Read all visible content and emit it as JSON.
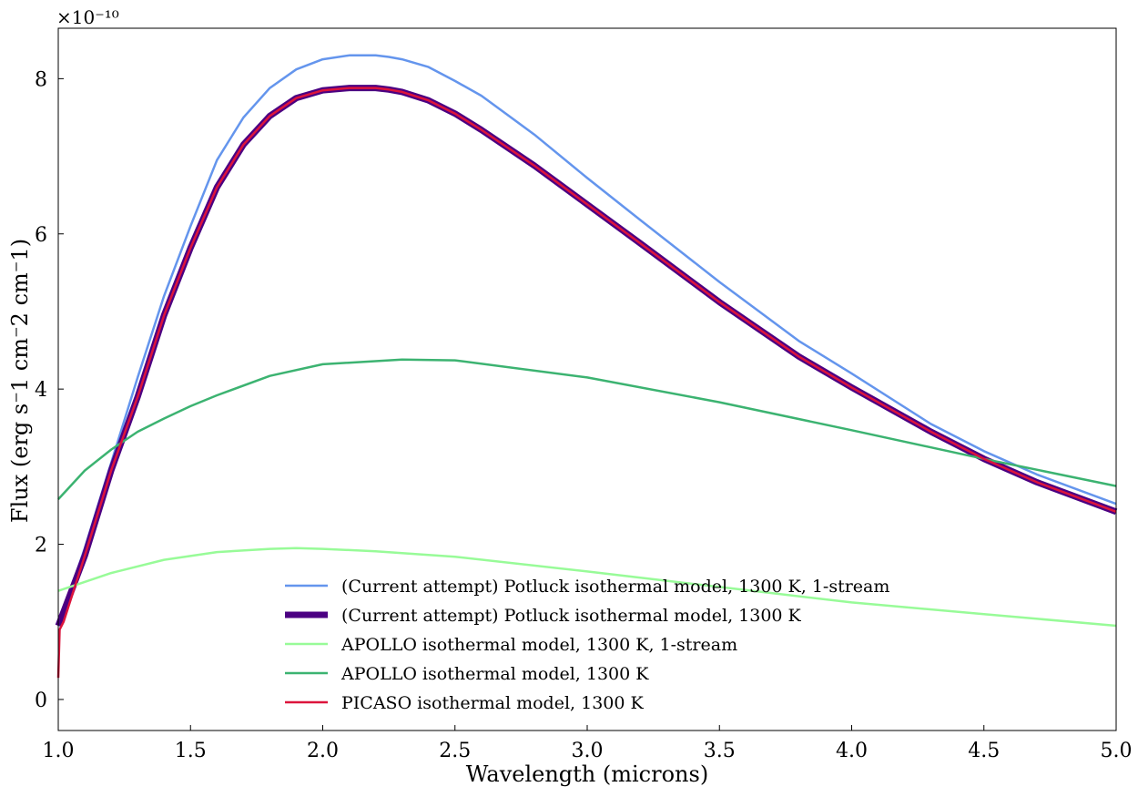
{
  "chart_data": {
    "type": "line",
    "xlabel": "Wavelength (microns)",
    "ylabel": "Flux (erg s⁻1 cm⁻2 cm⁻1)",
    "xlim": [
      1.0,
      5.0
    ],
    "ylim": [
      -0.4,
      8.65
    ],
    "y_multiplier": "×10⁻¹⁰",
    "x_ticks": [
      "1.0",
      "1.5",
      "2.0",
      "2.5",
      "3.0",
      "3.5",
      "4.0",
      "4.5",
      "5.0"
    ],
    "y_ticks": [
      "0",
      "2",
      "4",
      "6",
      "8"
    ],
    "grid": false,
    "legend_position": "lower-center",
    "series": [
      {
        "name": "(Current attempt) Potluck isothermal model, 1300 K, 1-stream",
        "color": "#6495ED",
        "width": 2.5,
        "x": [
          1.0,
          1.1,
          1.2,
          1.3,
          1.4,
          1.5,
          1.6,
          1.7,
          1.8,
          1.9,
          2.0,
          2.1,
          2.2,
          2.25,
          2.3,
          2.4,
          2.5,
          2.6,
          2.8,
          3.0,
          3.2,
          3.5,
          3.8,
          4.0,
          4.3,
          4.5,
          4.7,
          5.0
        ],
        "values": [
          0.95,
          1.95,
          3.05,
          4.15,
          5.2,
          6.1,
          6.95,
          7.5,
          7.88,
          8.12,
          8.25,
          8.3,
          8.3,
          8.28,
          8.25,
          8.15,
          7.97,
          7.78,
          7.28,
          6.72,
          6.18,
          5.38,
          4.62,
          4.2,
          3.55,
          3.2,
          2.9,
          2.52
        ]
      },
      {
        "name": "(Current attempt) Potluck isothermal model, 1300 K",
        "color": "#4B0082",
        "width": 7,
        "x": [
          1.0,
          1.1,
          1.2,
          1.3,
          1.4,
          1.5,
          1.6,
          1.7,
          1.8,
          1.9,
          2.0,
          2.1,
          2.2,
          2.25,
          2.3,
          2.4,
          2.5,
          2.6,
          2.8,
          3.0,
          3.2,
          3.5,
          3.8,
          4.0,
          4.3,
          4.5,
          4.7,
          5.0
        ],
        "values": [
          0.95,
          1.85,
          2.95,
          3.9,
          4.95,
          5.82,
          6.6,
          7.15,
          7.52,
          7.75,
          7.85,
          7.88,
          7.88,
          7.86,
          7.83,
          7.72,
          7.55,
          7.34,
          6.88,
          6.38,
          5.88,
          5.12,
          4.42,
          4.02,
          3.45,
          3.1,
          2.8,
          2.42
        ]
      },
      {
        "name": "APOLLO isothermal model, 1300 K, 1-stream",
        "color": "#98FB98",
        "width": 2.5,
        "x": [
          1.0,
          1.2,
          1.4,
          1.6,
          1.8,
          1.9,
          2.0,
          2.2,
          2.5,
          3.0,
          3.5,
          4.0,
          4.5,
          5.0
        ],
        "values": [
          1.4,
          1.63,
          1.8,
          1.9,
          1.94,
          1.95,
          1.94,
          1.91,
          1.84,
          1.65,
          1.45,
          1.25,
          1.1,
          0.95
        ]
      },
      {
        "name": "APOLLO isothermal model, 1300 K",
        "color": "#3CB371",
        "width": 2.5,
        "x": [
          1.0,
          1.1,
          1.2,
          1.3,
          1.4,
          1.5,
          1.6,
          1.8,
          2.0,
          2.3,
          2.5,
          3.0,
          3.5,
          4.0,
          4.5,
          5.0
        ],
        "values": [
          2.58,
          2.95,
          3.22,
          3.45,
          3.62,
          3.78,
          3.92,
          4.17,
          4.32,
          4.38,
          4.37,
          4.15,
          3.83,
          3.47,
          3.1,
          2.75
        ]
      },
      {
        "name": "PICASO isothermal model, 1300 K",
        "color": "#DC143C",
        "width": 2.5,
        "x": [
          1.0,
          1.005,
          1.02,
          1.1,
          1.2,
          1.3,
          1.4,
          1.5,
          1.6,
          1.7,
          1.8,
          1.9,
          2.0,
          2.1,
          2.2,
          2.25,
          2.3,
          2.4,
          2.5,
          2.6,
          2.8,
          3.0,
          3.2,
          3.5,
          3.8,
          4.0,
          4.3,
          4.5,
          4.7,
          5.0
        ],
        "values": [
          0.28,
          0.9,
          1.0,
          1.85,
          2.95,
          3.9,
          4.95,
          5.82,
          6.6,
          7.15,
          7.52,
          7.75,
          7.85,
          7.88,
          7.88,
          7.86,
          7.83,
          7.72,
          7.55,
          7.34,
          6.88,
          6.38,
          5.88,
          5.12,
          4.42,
          4.02,
          3.45,
          3.1,
          2.8,
          2.42
        ]
      }
    ]
  }
}
